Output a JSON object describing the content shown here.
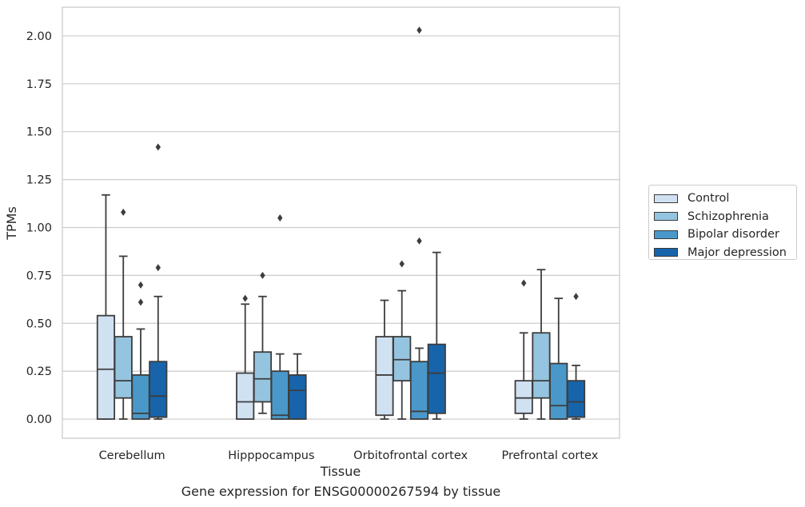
{
  "caption": "Gene expression for ENSG00000267594 by tissue",
  "chart_data": {
    "type": "boxplot",
    "title": "",
    "xlabel": "Tissue",
    "ylabel": "TPMs",
    "ylim": [
      -0.1,
      2.15
    ],
    "yticks": [
      0.0,
      0.25,
      0.5,
      0.75,
      1.0,
      1.25,
      1.5,
      1.75,
      2.0
    ],
    "ytick_labels": [
      "0.00",
      "0.25",
      "0.50",
      "0.75",
      "1.00",
      "1.25",
      "1.50",
      "1.75",
      "2.00"
    ],
    "grid": true,
    "legend_position": "right",
    "categories": [
      "Cerebellum",
      "Hipppocampus",
      "Orbitofrontal cortex",
      "Prefrontal cortex"
    ],
    "series": [
      {
        "name": "Control",
        "color": "#d0e1f2",
        "boxes": [
          {
            "whislo": 0.0,
            "q1": 0.0,
            "med": 0.26,
            "q3": 0.54,
            "whishi": 1.17,
            "fliers": []
          },
          {
            "whislo": 0.0,
            "q1": 0.0,
            "med": 0.09,
            "q3": 0.24,
            "whishi": 0.6,
            "fliers": [
              0.63
            ]
          },
          {
            "whislo": 0.0,
            "q1": 0.02,
            "med": 0.23,
            "q3": 0.43,
            "whishi": 0.62,
            "fliers": []
          },
          {
            "whislo": 0.0,
            "q1": 0.03,
            "med": 0.11,
            "q3": 0.2,
            "whishi": 0.45,
            "fliers": [
              0.71
            ]
          }
        ]
      },
      {
        "name": "Schizophrenia",
        "color": "#94c4df",
        "boxes": [
          {
            "whislo": 0.0,
            "q1": 0.11,
            "med": 0.2,
            "q3": 0.43,
            "whishi": 0.85,
            "fliers": [
              1.08
            ]
          },
          {
            "whislo": 0.03,
            "q1": 0.09,
            "med": 0.21,
            "q3": 0.35,
            "whishi": 0.64,
            "fliers": [
              0.75
            ]
          },
          {
            "whislo": 0.0,
            "q1": 0.2,
            "med": 0.31,
            "q3": 0.43,
            "whishi": 0.67,
            "fliers": [
              0.81
            ]
          },
          {
            "whislo": 0.0,
            "q1": 0.11,
            "med": 0.2,
            "q3": 0.45,
            "whishi": 0.78,
            "fliers": []
          }
        ]
      },
      {
        "name": "Bipolar disorder",
        "color": "#4a98c9",
        "boxes": [
          {
            "whislo": 0.0,
            "q1": 0.0,
            "med": 0.03,
            "q3": 0.23,
            "whishi": 0.47,
            "fliers": [
              0.61,
              0.7
            ]
          },
          {
            "whislo": 0.0,
            "q1": 0.0,
            "med": 0.02,
            "q3": 0.25,
            "whishi": 0.34,
            "fliers": [
              1.05
            ]
          },
          {
            "whislo": 0.0,
            "q1": 0.0,
            "med": 0.04,
            "q3": 0.3,
            "whishi": 0.37,
            "fliers": [
              0.93,
              2.03
            ]
          },
          {
            "whislo": 0.0,
            "q1": 0.0,
            "med": 0.07,
            "q3": 0.29,
            "whishi": 0.63,
            "fliers": []
          }
        ]
      },
      {
        "name": "Major depression",
        "color": "#1764ab",
        "boxes": [
          {
            "whislo": 0.0,
            "q1": 0.01,
            "med": 0.12,
            "q3": 0.3,
            "whishi": 0.64,
            "fliers": [
              0.79,
              1.42
            ]
          },
          {
            "whislo": 0.0,
            "q1": 0.0,
            "med": 0.15,
            "q3": 0.23,
            "whishi": 0.34,
            "fliers": []
          },
          {
            "whislo": 0.0,
            "q1": 0.03,
            "med": 0.24,
            "q3": 0.39,
            "whishi": 0.87,
            "fliers": []
          },
          {
            "whislo": 0.0,
            "q1": 0.01,
            "med": 0.09,
            "q3": 0.2,
            "whishi": 0.28,
            "fliers": [
              0.64
            ]
          }
        ]
      }
    ]
  }
}
